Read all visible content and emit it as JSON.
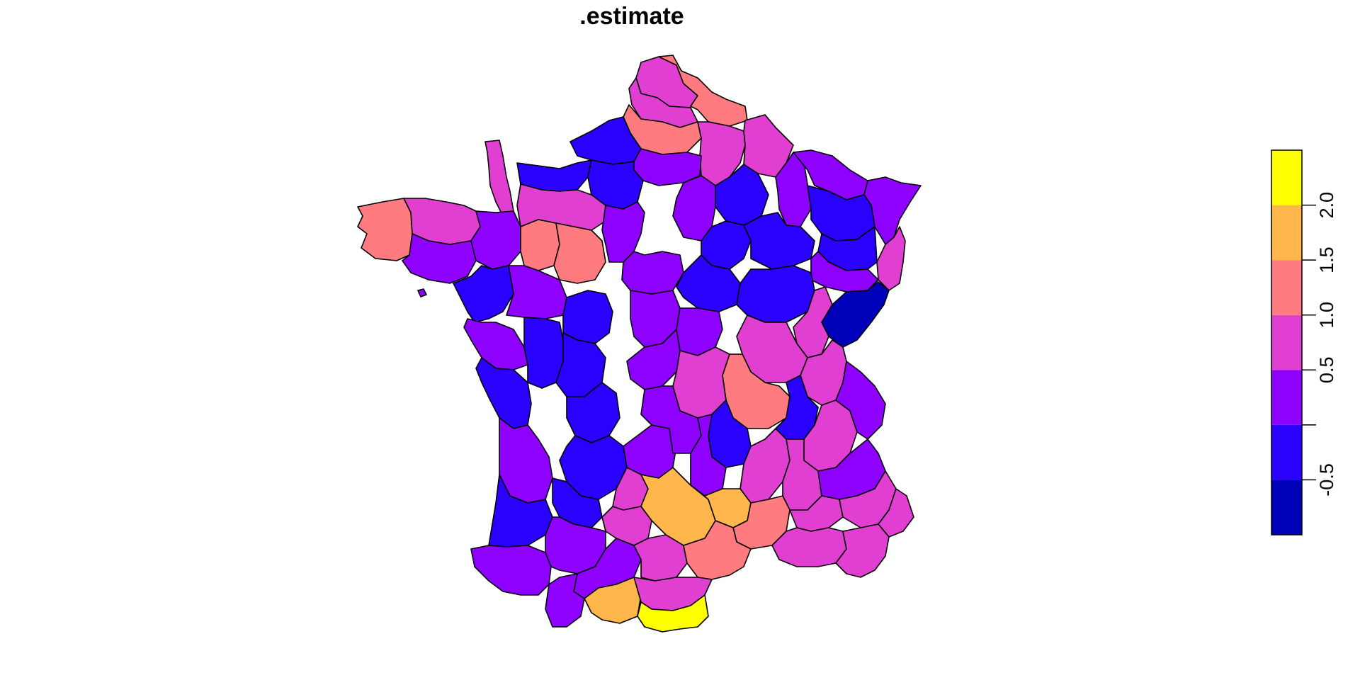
{
  "title": ".estimate",
  "palette": {
    "c0": "#0000BB",
    "c1": "#2A00FF",
    "c2": "#8E00FF",
    "c3": "#E03FD1",
    "c4": "#FF7B80",
    "c5": "#FFB64B",
    "c6": "#FFFF00"
  },
  "legend": {
    "placement": "right",
    "breaks": [
      -1.0,
      -0.5,
      0.0,
      0.5,
      1.0,
      1.5,
      2.0,
      2.5
    ],
    "ticks": [
      {
        "value": -0.5,
        "label": "-0.5"
      },
      {
        "value": 0.0,
        "label": ""
      },
      {
        "value": 0.5,
        "label": "0.5"
      },
      {
        "value": 1.0,
        "label": "1.0"
      },
      {
        "value": 1.5,
        "label": "1.5"
      },
      {
        "value": 2.0,
        "label": "2.0"
      }
    ]
  },
  "departments": [
    {
      "id": "nord",
      "bin": 3
    },
    {
      "id": "nord-east",
      "bin": 4
    },
    {
      "id": "pas-de-calais",
      "bin": 3
    },
    {
      "id": "somme",
      "bin": 4
    },
    {
      "id": "aisne",
      "bin": 3
    },
    {
      "id": "ardennes",
      "bin": 3
    },
    {
      "id": "seine-maritime",
      "bin": 1
    },
    {
      "id": "calvados",
      "bin": 1
    },
    {
      "id": "manche",
      "bin": 3
    },
    {
      "id": "oise",
      "bin": 2
    },
    {
      "id": "eure",
      "bin": 1
    },
    {
      "id": "marne",
      "bin": 1
    },
    {
      "id": "meuse",
      "bin": 2
    },
    {
      "id": "moselle",
      "bin": 2
    },
    {
      "id": "bas-rhin",
      "bin": 2
    },
    {
      "id": "meurthe",
      "bin": 1
    },
    {
      "id": "haut-rhin",
      "bin": 3
    },
    {
      "id": "vosges",
      "bin": 1
    },
    {
      "id": "finistere",
      "bin": 4
    },
    {
      "id": "cotes-armor",
      "bin": 3
    },
    {
      "id": "ille-vilaine",
      "bin": 2
    },
    {
      "id": "morbihan",
      "bin": 2
    },
    {
      "id": "orne",
      "bin": 3
    },
    {
      "id": "mayenne",
      "bin": 4
    },
    {
      "id": "sarthe",
      "bin": 4
    },
    {
      "id": "eure-loir",
      "bin": 2
    },
    {
      "id": "seine-marne",
      "bin": 2
    },
    {
      "id": "aube",
      "bin": 1
    },
    {
      "id": "haute-marne",
      "bin": 1
    },
    {
      "id": "haute-saone",
      "bin": 2
    },
    {
      "id": "doubs",
      "bin": 0
    },
    {
      "id": "loire-atl",
      "bin": 1
    },
    {
      "id": "maine-loire",
      "bin": 2
    },
    {
      "id": "loiret",
      "bin": 2
    },
    {
      "id": "yonne",
      "bin": 1
    },
    {
      "id": "cote-or",
      "bin": 1
    },
    {
      "id": "jura",
      "bin": 3
    },
    {
      "id": "vendee",
      "bin": 2
    },
    {
      "id": "deux-sevres",
      "bin": 1
    },
    {
      "id": "indre-loire",
      "bin": 1
    },
    {
      "id": "cher",
      "bin": 2
    },
    {
      "id": "nievre",
      "bin": 2
    },
    {
      "id": "saone-loire",
      "bin": 3
    },
    {
      "id": "ain",
      "bin": 4
    },
    {
      "id": "haute-savoie",
      "bin": 3
    },
    {
      "id": "charente-mar",
      "bin": 1
    },
    {
      "id": "vienne",
      "bin": 1
    },
    {
      "id": "haute-vienne",
      "bin": 1
    },
    {
      "id": "creuse",
      "bin": 2
    },
    {
      "id": "allier",
      "bin": 3
    },
    {
      "id": "loire",
      "bin": 1
    },
    {
      "id": "rhone",
      "bin": 1
    },
    {
      "id": "isere",
      "bin": 3
    },
    {
      "id": "savoie",
      "bin": 2
    },
    {
      "id": "gironde",
      "bin": 2
    },
    {
      "id": "dordogne",
      "bin": 1
    },
    {
      "id": "correze",
      "bin": 2
    },
    {
      "id": "cantal",
      "bin": 2
    },
    {
      "id": "haute-loire",
      "bin": 2
    },
    {
      "id": "ardeche",
      "bin": 3
    },
    {
      "id": "drome",
      "bin": 3
    },
    {
      "id": "hautes-alpes",
      "bin": 2
    },
    {
      "id": "landes",
      "bin": 1
    },
    {
      "id": "lot-garonne",
      "bin": 1
    },
    {
      "id": "lot",
      "bin": 3
    },
    {
      "id": "aveyron",
      "bin": 5
    },
    {
      "id": "lozere",
      "bin": 5
    },
    {
      "id": "gard",
      "bin": 4
    },
    {
      "id": "vaucluse",
      "bin": 3
    },
    {
      "id": "alpes-hp",
      "bin": 3
    },
    {
      "id": "alpes-mar",
      "bin": 3
    },
    {
      "id": "tarn-garonne",
      "bin": 3
    },
    {
      "id": "pyrenees-atl",
      "bin": 2
    },
    {
      "id": "gers",
      "bin": 2
    },
    {
      "id": "haute-garonne",
      "bin": 2
    },
    {
      "id": "tarn",
      "bin": 3
    },
    {
      "id": "herault",
      "bin": 4
    },
    {
      "id": "bouches-rhone",
      "bin": 3
    },
    {
      "id": "var",
      "bin": 3
    },
    {
      "id": "hautes-pyr",
      "bin": 2
    },
    {
      "id": "ariege",
      "bin": 5
    },
    {
      "id": "aude",
      "bin": 3
    },
    {
      "id": "pyrenees-or",
      "bin": 6
    },
    {
      "id": "ile-yeu",
      "bin": 2
    }
  ]
}
